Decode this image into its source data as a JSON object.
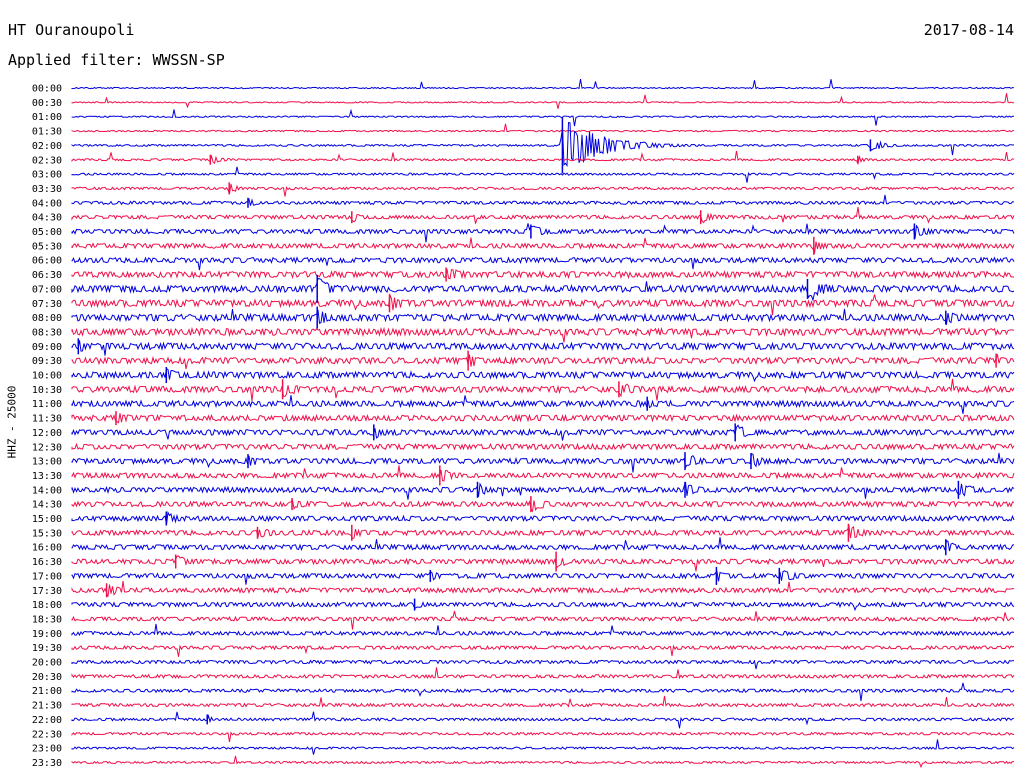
{
  "header": {
    "station": "HT Ouranoupoli",
    "date": "2017-08-14",
    "filter": "Applied filter: WWSSN-SP"
  },
  "colors": {
    "even_row": "#0000e0",
    "odd_row": "#f0104a",
    "background": "#ffffff"
  },
  "chart_data": {
    "type": "helicorder",
    "ylabel": "HHZ - 25000",
    "row_labels": [
      "00:00",
      "00:30",
      "01:00",
      "01:30",
      "02:00",
      "02:30",
      "03:00",
      "03:30",
      "04:00",
      "04:30",
      "05:00",
      "05:30",
      "06:00",
      "06:30",
      "07:00",
      "07:30",
      "08:00",
      "08:30",
      "09:00",
      "09:30",
      "10:00",
      "10:30",
      "11:00",
      "11:30",
      "12:00",
      "12:30",
      "13:00",
      "13:30",
      "14:00",
      "14:30",
      "15:00",
      "15:30",
      "16:00",
      "16:30",
      "17:00",
      "17:30",
      "18:00",
      "18:30",
      "19:00",
      "19:30",
      "20:00",
      "20:30",
      "21:00",
      "21:30",
      "22:00",
      "22:30",
      "23:00",
      "23:30"
    ],
    "row_minutes": 30,
    "noise_level": [
      0.6,
      0.6,
      0.7,
      0.7,
      0.9,
      1.0,
      1.0,
      1.2,
      1.5,
      1.8,
      2.1,
      2.3,
      2.5,
      2.9,
      3.2,
      3.3,
      3.3,
      3.3,
      3.2,
      3.0,
      3.0,
      3.0,
      2.8,
      2.8,
      2.7,
      2.6,
      2.6,
      2.5,
      2.5,
      2.5,
      2.4,
      2.4,
      2.4,
      2.4,
      2.3,
      2.3,
      2.1,
      1.9,
      1.8,
      1.7,
      1.6,
      1.6,
      1.5,
      1.5,
      1.3,
      1.2,
      1.0,
      1.0
    ],
    "events": [
      {
        "row": 4,
        "minute": 15.6,
        "amplitude": 28,
        "duration_min": 2.2
      },
      {
        "row": 4,
        "minute": 25.4,
        "amplitude": 6,
        "duration_min": 0.9
      },
      {
        "row": 5,
        "minute": 4.4,
        "amplitude": 5,
        "duration_min": 0.8
      },
      {
        "row": 5,
        "minute": 25.0,
        "amplitude": 4,
        "duration_min": 0.5
      },
      {
        "row": 7,
        "minute": 5.0,
        "amplitude": 6,
        "duration_min": 0.5
      },
      {
        "row": 8,
        "minute": 5.6,
        "amplitude": 5,
        "duration_min": 0.6
      },
      {
        "row": 9,
        "minute": 8.9,
        "amplitude": 6,
        "duration_min": 0.6
      },
      {
        "row": 9,
        "minute": 20.0,
        "amplitude": 7,
        "duration_min": 0.8
      },
      {
        "row": 10,
        "minute": 14.6,
        "amplitude": 7,
        "duration_min": 0.9
      },
      {
        "row": 10,
        "minute": 26.8,
        "amplitude": 8,
        "duration_min": 0.8
      },
      {
        "row": 11,
        "minute": 23.6,
        "amplitude": 9,
        "duration_min": 0.5
      },
      {
        "row": 13,
        "minute": 11.9,
        "amplitude": 7,
        "duration_min": 1.4
      },
      {
        "row": 14,
        "minute": 7.8,
        "amplitude": 14,
        "duration_min": 0.9
      },
      {
        "row": 14,
        "minute": 23.4,
        "amplitude": 10,
        "duration_min": 1.4
      },
      {
        "row": 15,
        "minute": 10.1,
        "amplitude": 9,
        "duration_min": 1.0
      },
      {
        "row": 16,
        "minute": 7.8,
        "amplitude": 11,
        "duration_min": 0.6
      },
      {
        "row": 16,
        "minute": 27.8,
        "amplitude": 7,
        "duration_min": 0.9
      },
      {
        "row": 18,
        "minute": 0.2,
        "amplitude": 8,
        "duration_min": 0.5
      },
      {
        "row": 19,
        "minute": 12.6,
        "amplitude": 10,
        "duration_min": 0.6
      },
      {
        "row": 19,
        "minute": 29.4,
        "amplitude": 7,
        "duration_min": 0.5
      },
      {
        "row": 20,
        "minute": 3.0,
        "amplitude": 8,
        "duration_min": 0.8
      },
      {
        "row": 21,
        "minute": 6.7,
        "amplitude": 10,
        "duration_min": 0.9
      },
      {
        "row": 21,
        "minute": 17.4,
        "amplitude": 8,
        "duration_min": 1.1
      },
      {
        "row": 22,
        "minute": 18.3,
        "amplitude": 7,
        "duration_min": 0.5
      },
      {
        "row": 23,
        "minute": 1.4,
        "amplitude": 7,
        "duration_min": 0.9
      },
      {
        "row": 24,
        "minute": 9.6,
        "amplitude": 8,
        "duration_min": 0.6
      },
      {
        "row": 24,
        "minute": 21.1,
        "amplitude": 9,
        "duration_min": 0.8
      },
      {
        "row": 26,
        "minute": 5.6,
        "amplitude": 7,
        "duration_min": 0.7
      },
      {
        "row": 26,
        "minute": 19.5,
        "amplitude": 9,
        "duration_min": 0.9
      },
      {
        "row": 26,
        "minute": 21.6,
        "amplitude": 8,
        "duration_min": 0.7
      },
      {
        "row": 27,
        "minute": 11.7,
        "amplitude": 10,
        "duration_min": 0.6
      },
      {
        "row": 28,
        "minute": 12.9,
        "amplitude": 8,
        "duration_min": 0.7
      },
      {
        "row": 28,
        "minute": 19.5,
        "amplitude": 8,
        "duration_min": 0.8
      },
      {
        "row": 28,
        "minute": 28.2,
        "amplitude": 9,
        "duration_min": 0.9
      },
      {
        "row": 29,
        "minute": 7.0,
        "amplitude": 6,
        "duration_min": 0.8
      },
      {
        "row": 29,
        "minute": 14.6,
        "amplitude": 8,
        "duration_min": 1.0
      },
      {
        "row": 30,
        "minute": 3.0,
        "amplitude": 7,
        "duration_min": 0.7
      },
      {
        "row": 31,
        "minute": 5.9,
        "amplitude": 6,
        "duration_min": 1.0
      },
      {
        "row": 31,
        "minute": 8.9,
        "amplitude": 8,
        "duration_min": 0.8
      },
      {
        "row": 31,
        "minute": 24.7,
        "amplitude": 9,
        "duration_min": 0.8
      },
      {
        "row": 32,
        "minute": 27.8,
        "amplitude": 8,
        "duration_min": 0.6
      },
      {
        "row": 33,
        "minute": 3.3,
        "amplitude": 7,
        "duration_min": 0.9
      },
      {
        "row": 33,
        "minute": 15.4,
        "amplitude": 10,
        "duration_min": 0.5
      },
      {
        "row": 34,
        "minute": 11.4,
        "amplitude": 6,
        "duration_min": 0.6
      },
      {
        "row": 34,
        "minute": 20.5,
        "amplitude": 9,
        "duration_min": 0.5
      },
      {
        "row": 34,
        "minute": 22.5,
        "amplitude": 8,
        "duration_min": 0.9
      },
      {
        "row": 35,
        "minute": 1.1,
        "amplitude": 7,
        "duration_min": 1.0
      },
      {
        "row": 36,
        "minute": 10.9,
        "amplitude": 6,
        "duration_min": 0.5
      },
      {
        "row": 44,
        "minute": 4.3,
        "amplitude": 5,
        "duration_min": 0.3
      }
    ]
  }
}
